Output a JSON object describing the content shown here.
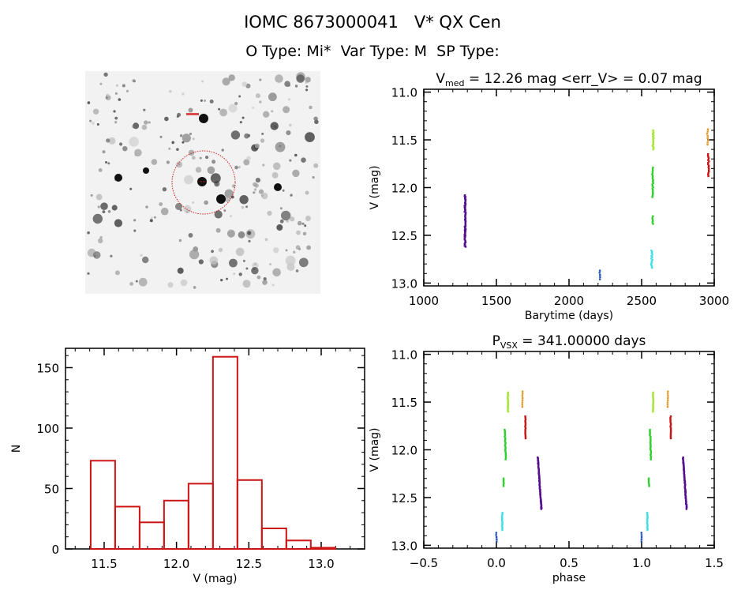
{
  "header": {
    "title": "IOMC 8673000041   V* QX Cen",
    "subtitle": "O Type: Mi*  Var Type: M  SP Type:"
  },
  "finder_image": {
    "description_label": "DSS finder chart",
    "marker_color": "#d02020"
  },
  "chart_data": [
    {
      "id": "lightcurve",
      "type": "scatter",
      "title_main": "V",
      "title_sub": "med",
      "title_rest": " = 12.26 mag <err_V> = 0.07 mag",
      "xlabel": "Barytime (days)",
      "ylabel": "V (mag)",
      "xlim": [
        1000,
        3000
      ],
      "ylim": [
        13.03,
        10.97
      ],
      "xticks": [
        1000,
        1500,
        2000,
        2500,
        3000
      ],
      "xtick_labels": [
        "1000",
        "1500",
        "2000",
        "2500",
        "3000"
      ],
      "yticks": [
        11.0,
        11.5,
        12.0,
        12.5,
        13.0
      ],
      "ytick_labels": [
        "11.0",
        "11.5",
        "12.0",
        "12.5",
        "13.0"
      ],
      "series": [
        {
          "name": "season1",
          "color": "#55108f",
          "t": 1285,
          "v": [
            12.08,
            12.62
          ],
          "n": 60
        },
        {
          "name": "season2",
          "color": "#2352b8",
          "t": 2210,
          "v": [
            12.87,
            12.96
          ],
          "n": 5
        },
        {
          "name": "season3",
          "color": "#3de0e6",
          "t": 2570,
          "v": [
            12.66,
            12.84
          ],
          "n": 14
        },
        {
          "name": "season4a",
          "color": "#2fd02f",
          "t": 2575,
          "v": [
            12.3,
            12.38
          ],
          "n": 6
        },
        {
          "name": "season4b",
          "color": "#2fd02f",
          "t": 2577,
          "v": [
            11.79,
            12.1
          ],
          "n": 22
        },
        {
          "name": "season5",
          "color": "#a6e534",
          "t": 2580,
          "v": [
            11.4,
            11.6
          ],
          "n": 16
        },
        {
          "name": "season6",
          "color": "#e39a2a",
          "t": 2955,
          "v": [
            11.39,
            11.55
          ],
          "n": 8
        },
        {
          "name": "season7",
          "color": "#cc1414",
          "t": 2960,
          "v": [
            11.65,
            11.88
          ],
          "n": 16
        }
      ]
    },
    {
      "id": "histogram",
      "type": "bar",
      "xlabel": "V (mag)",
      "ylabel": "N",
      "xlim": [
        11.233,
        13.3
      ],
      "ylim": [
        0,
        166
      ],
      "bin_start": 11.407,
      "bin_width": 0.169,
      "values": [
        73,
        35,
        22,
        40,
        54,
        159,
        57,
        17,
        7,
        1
      ],
      "color": "#cc1414",
      "xticks": [
        11.5,
        12.0,
        12.5,
        13.0
      ],
      "xtick_labels": [
        "11.5",
        "12.0",
        "12.5",
        "13.0"
      ],
      "yticks": [
        0,
        50,
        100,
        150
      ],
      "ytick_labels": [
        "0",
        "50",
        "100",
        "150"
      ]
    },
    {
      "id": "phased",
      "type": "scatter",
      "title_main": "P",
      "title_sub": "VSX",
      "title_rest": " = 341.00000 days",
      "xlabel": "phase",
      "ylabel": "V (mag)",
      "xlim": [
        -0.5,
        1.5
      ],
      "ylim": [
        13.03,
        10.97
      ],
      "xticks": [
        -0.5,
        0.0,
        0.5,
        1.0,
        1.5
      ],
      "xtick_labels": [
        "−0.5",
        "0.0",
        "0.5",
        "1.0",
        "1.5"
      ],
      "yticks": [
        11.0,
        11.5,
        12.0,
        12.5,
        13.0
      ],
      "ytick_labels": [
        "11.0",
        "11.5",
        "12.0",
        "12.5",
        "13.0"
      ],
      "series": [
        {
          "name": "season1",
          "color": "#55108f",
          "phase": [
            0.285,
            0.31
          ],
          "v": [
            12.08,
            12.62
          ],
          "n": 60
        },
        {
          "name": "season2",
          "color": "#2352b8",
          "phase": [
            0.0,
            0.0
          ],
          "v": [
            12.87,
            12.96
          ],
          "n": 5
        },
        {
          "name": "season3",
          "color": "#3de0e6",
          "phase": [
            0.04,
            0.04
          ],
          "v": [
            12.66,
            12.84
          ],
          "n": 14
        },
        {
          "name": "season4a",
          "color": "#2fd02f",
          "phase": [
            0.05,
            0.05
          ],
          "v": [
            12.3,
            12.38
          ],
          "n": 6
        },
        {
          "name": "season4b",
          "color": "#2fd02f",
          "phase": [
            0.058,
            0.064
          ],
          "v": [
            11.79,
            12.1
          ],
          "n": 22
        },
        {
          "name": "season5",
          "color": "#a6e534",
          "phase": [
            0.08,
            0.08
          ],
          "v": [
            11.4,
            11.6
          ],
          "n": 16
        },
        {
          "name": "season6",
          "color": "#e39a2a",
          "phase": [
            0.18,
            0.18
          ],
          "v": [
            11.39,
            11.55
          ],
          "n": 8
        },
        {
          "name": "season7",
          "color": "#cc1414",
          "phase": [
            0.2,
            0.2
          ],
          "v": [
            11.65,
            11.88
          ],
          "n": 16
        }
      ]
    }
  ]
}
